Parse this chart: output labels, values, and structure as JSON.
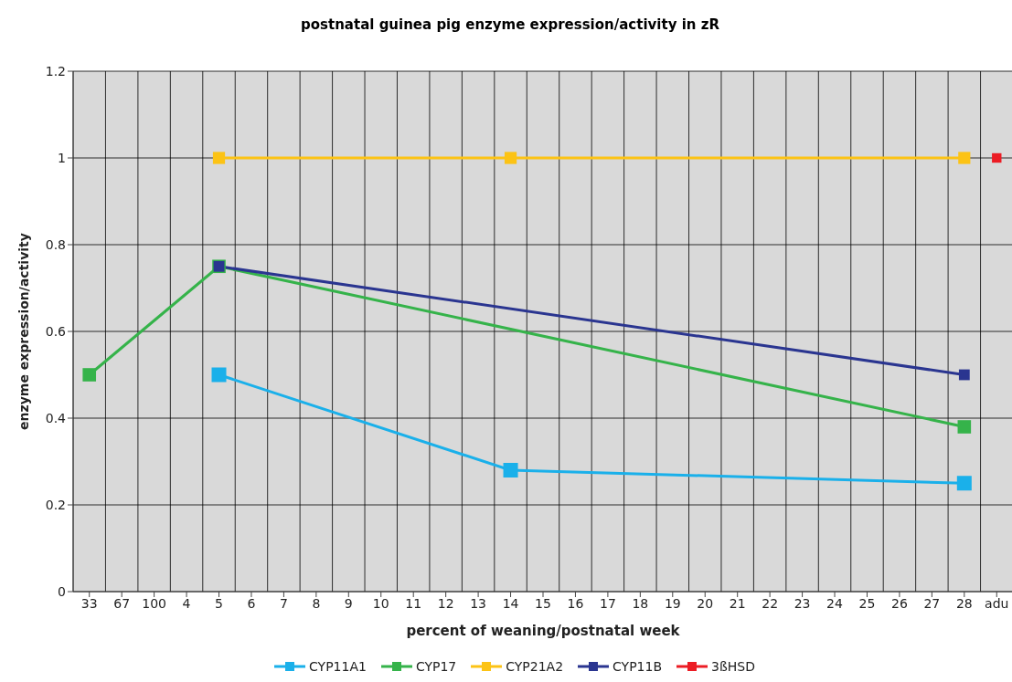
{
  "chart_data": {
    "type": "line",
    "title": "postnatal guinea pig enzyme expression/activity in zR",
    "xlabel": "percent of weaning/postnatal week",
    "ylabel": "enzyme expression/activity",
    "categories": [
      "33",
      "67",
      "100",
      "4",
      "5",
      "6",
      "7",
      "8",
      "9",
      "10",
      "11",
      "12",
      "13",
      "14",
      "15",
      "16",
      "17",
      "18",
      "19",
      "20",
      "21",
      "22",
      "23",
      "24",
      "25",
      "26",
      "27",
      "28",
      "adu"
    ],
    "series": [
      {
        "name": "CYP11A1",
        "color": "#1ab0ea",
        "values": [
          null,
          null,
          null,
          null,
          0.5,
          null,
          null,
          null,
          null,
          null,
          null,
          null,
          null,
          0.28,
          null,
          null,
          null,
          null,
          null,
          null,
          null,
          null,
          null,
          null,
          null,
          null,
          null,
          0.25,
          null
        ]
      },
      {
        "name": "CYP17",
        "color": "#35b34a",
        "values": [
          0.5,
          null,
          null,
          null,
          0.75,
          null,
          null,
          null,
          null,
          null,
          null,
          null,
          null,
          null,
          null,
          null,
          null,
          null,
          null,
          null,
          null,
          null,
          null,
          null,
          null,
          null,
          null,
          0.38,
          null
        ]
      },
      {
        "name": "CYP21A2",
        "color": "#fcc315",
        "values": [
          null,
          null,
          null,
          null,
          1,
          null,
          null,
          null,
          null,
          null,
          null,
          null,
          null,
          1,
          null,
          null,
          null,
          null,
          null,
          null,
          null,
          null,
          null,
          null,
          null,
          null,
          null,
          1,
          null
        ]
      },
      {
        "name": "CYP11B",
        "color": "#2a3590",
        "values": [
          null,
          null,
          null,
          null,
          0.75,
          null,
          null,
          null,
          null,
          null,
          null,
          null,
          null,
          null,
          null,
          null,
          null,
          null,
          null,
          null,
          null,
          null,
          null,
          null,
          null,
          null,
          null,
          0.5,
          null
        ]
      },
      {
        "name": "3ßHSD",
        "color": "#ec1c24",
        "values": [
          null,
          null,
          null,
          null,
          null,
          null,
          null,
          null,
          null,
          null,
          null,
          null,
          null,
          null,
          null,
          null,
          null,
          null,
          null,
          null,
          null,
          null,
          null,
          null,
          null,
          null,
          null,
          null,
          1
        ]
      }
    ],
    "ylim": [
      0,
      1.2
    ],
    "yticks": [
      0,
      0.2,
      0.4,
      0.6,
      0.8,
      1,
      1.2
    ],
    "grid": true,
    "legend": "bottom",
    "marker": "square",
    "line_style": "solid"
  }
}
